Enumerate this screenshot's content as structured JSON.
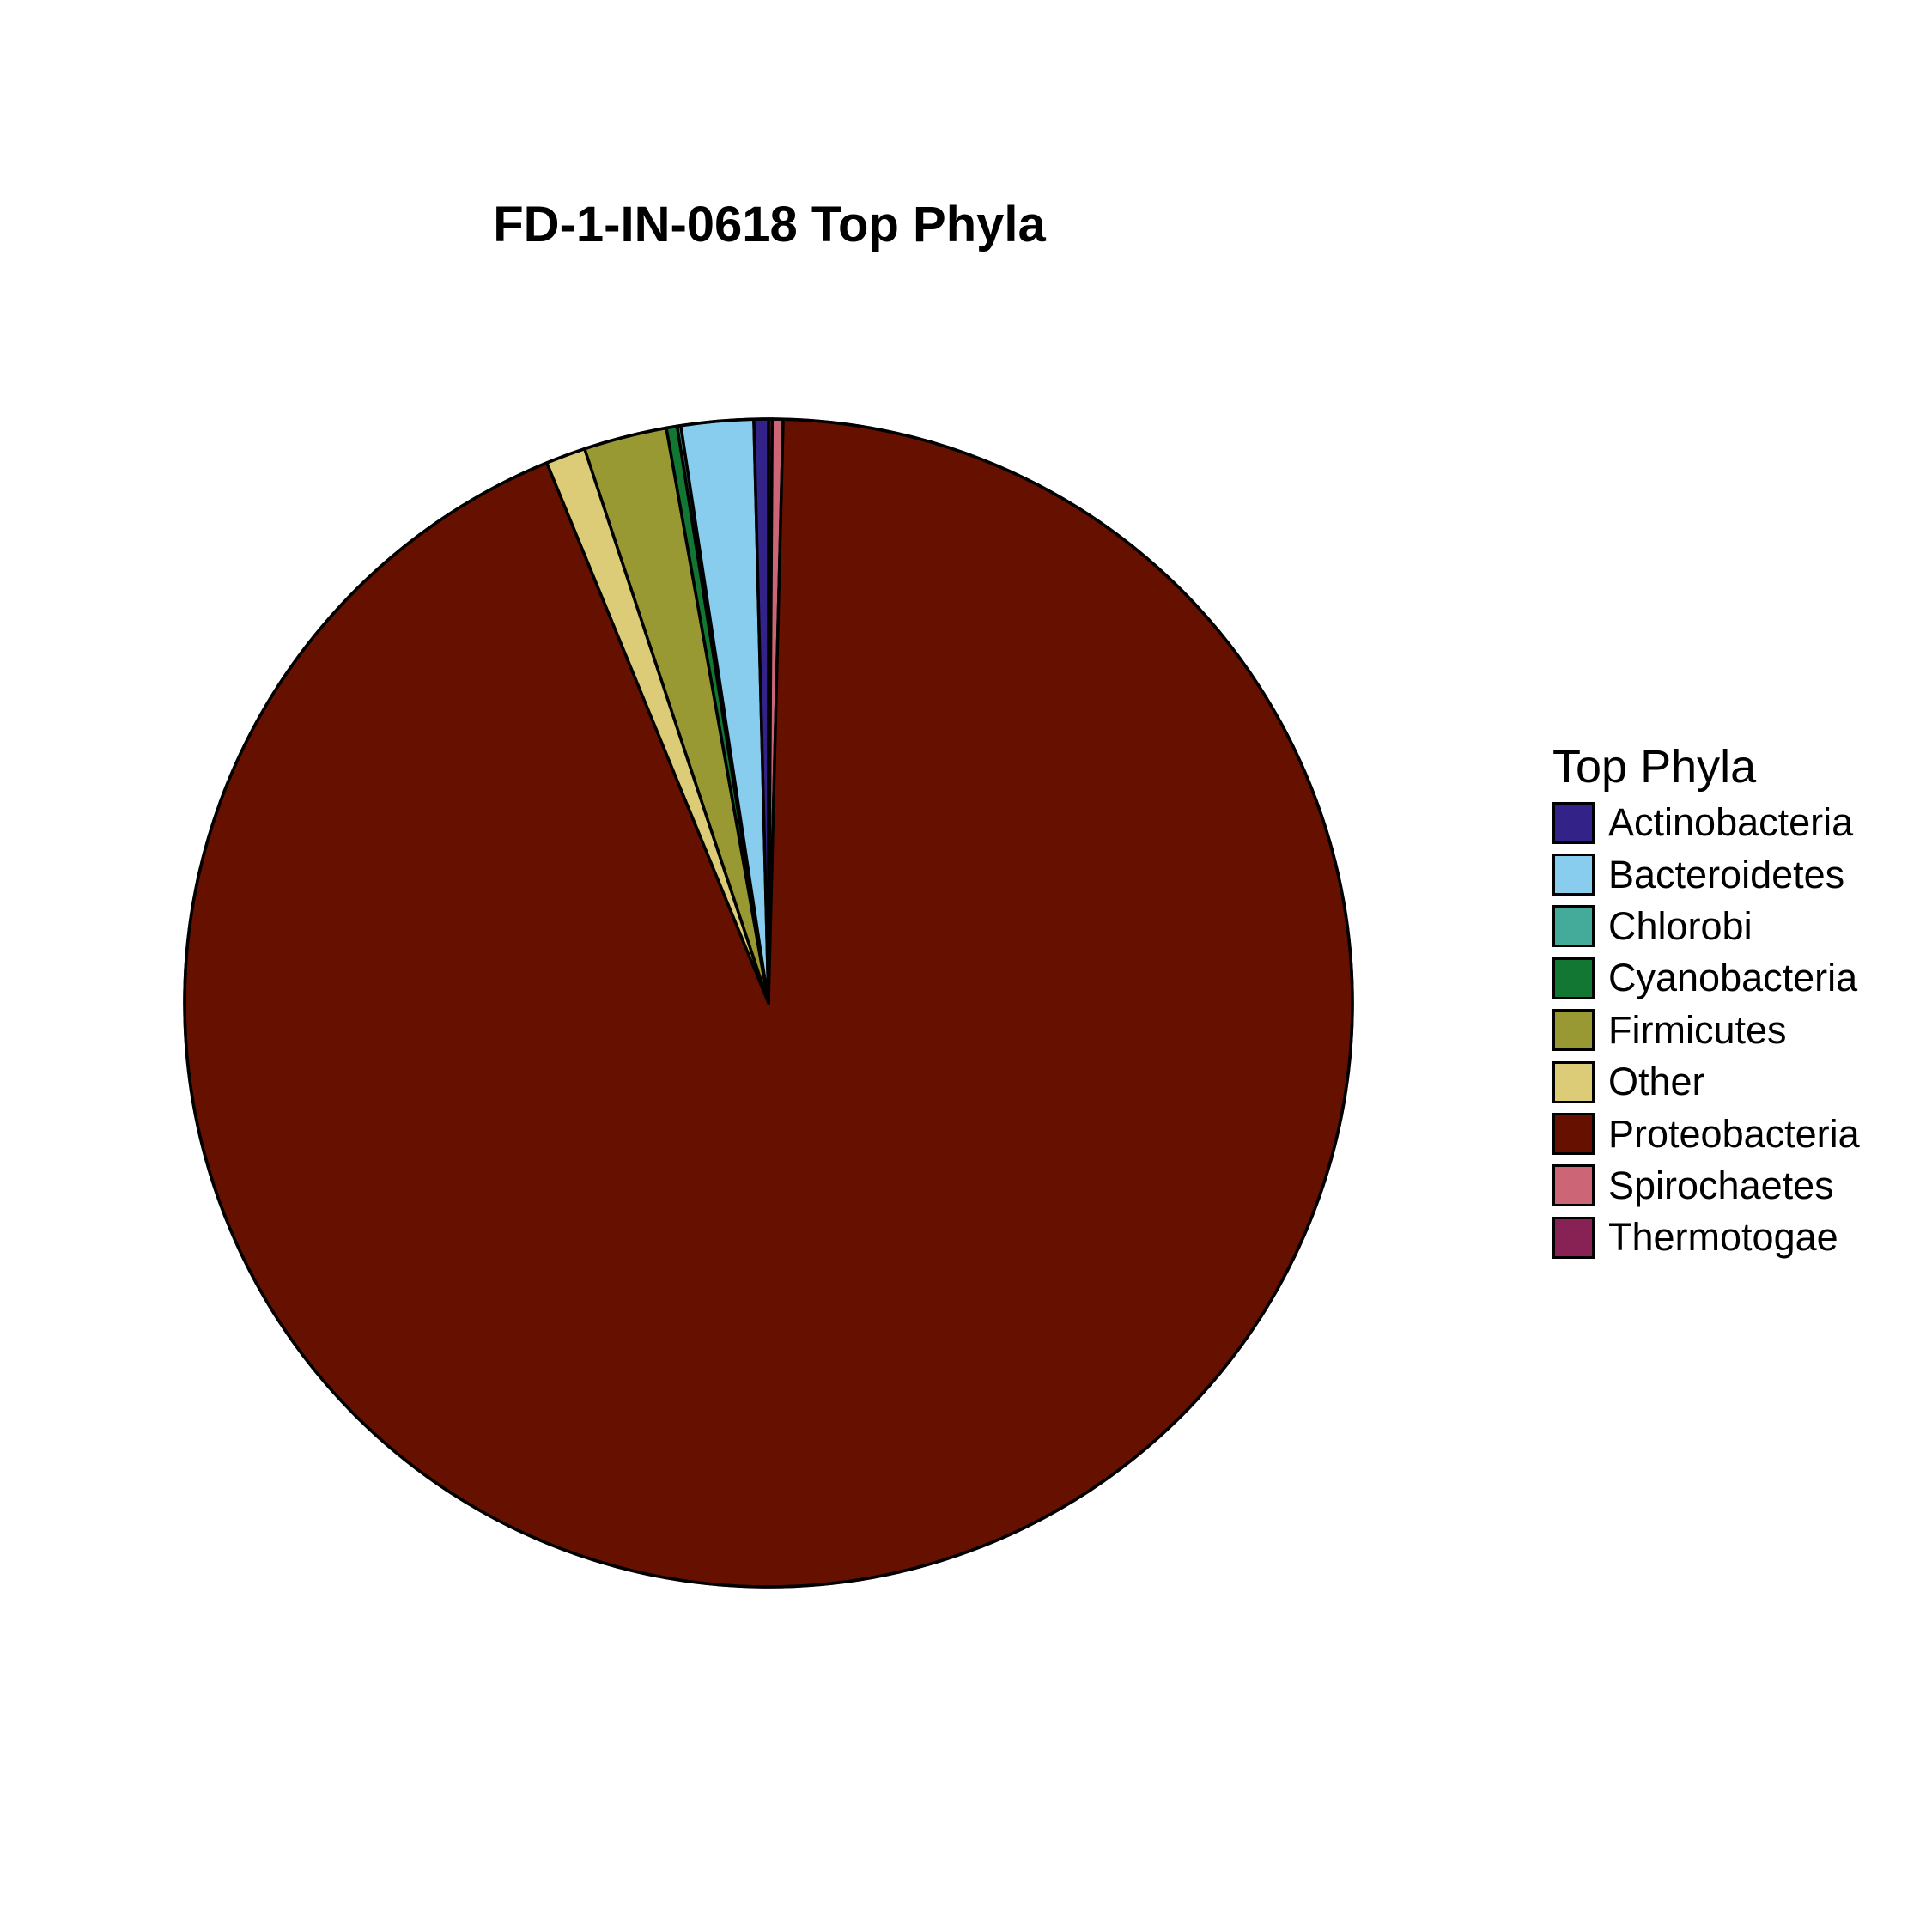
{
  "chart_data": {
    "type": "pie",
    "title": "FD-1-IN-0618 Top Phyla",
    "legend_title": "Top Phyla",
    "legend_position": "right",
    "categories": [
      "Actinobacteria",
      "Bacteroidetes",
      "Chlorobi",
      "Cyanobacteria",
      "Firmicutes",
      "Other",
      "Proteobacteria",
      "Spirochaetes",
      "Thermotogae"
    ],
    "values": [
      0.4,
      2.0,
      0.1,
      0.3,
      2.3,
      1.1,
      93.4,
      0.3,
      0.1
    ],
    "colors": [
      "#332288",
      "#88CCEE",
      "#44AA99",
      "#117733",
      "#999933",
      "#DDCC77",
      "#661100",
      "#CC6677",
      "#882255"
    ],
    "slice_order": [
      "Thermotogae",
      "Spirochaetes",
      "Proteobacteria",
      "Other",
      "Firmicutes",
      "Cyanobacteria",
      "Chlorobi",
      "Bacteroidetes",
      "Actinobacteria"
    ],
    "direction": "clockwise from top"
  }
}
